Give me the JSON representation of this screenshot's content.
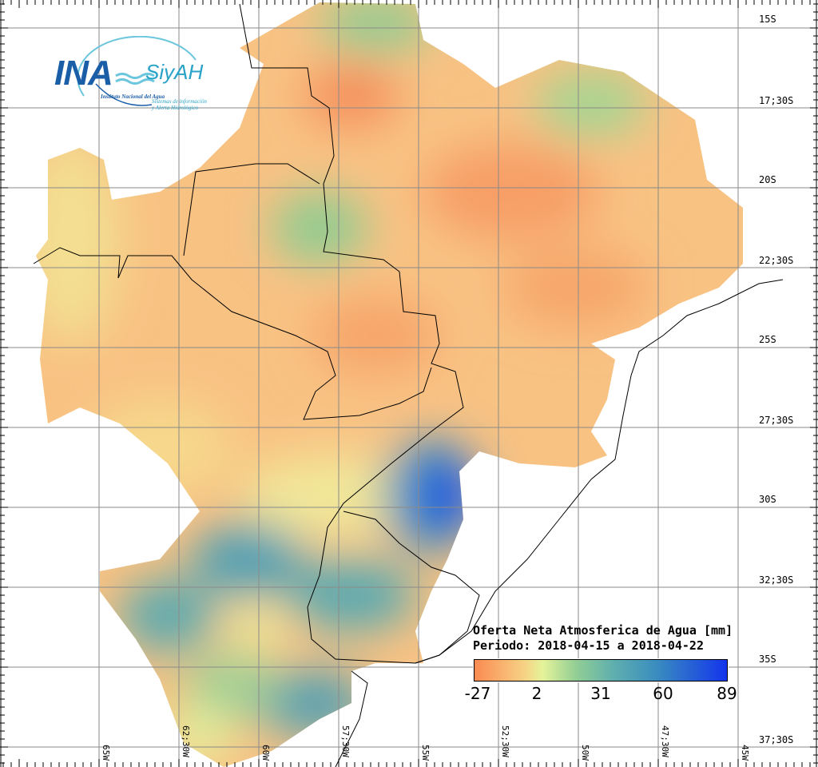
{
  "logo": {
    "main": "INA",
    "secondary": "SiyAH",
    "institute": "Instituto Nacional del Agua",
    "system_line1": "Sistemas de información",
    "system_line2": "y Alerta Hidrológico"
  },
  "legend": {
    "title": "Oferta Neta Atmosferica de Agua [mm]",
    "period": "Periodo: 2018-04-15 a 2018-04-22",
    "ticks": [
      "-27",
      "2",
      "31",
      "60",
      "89"
    ],
    "colors": [
      "#fb8a52",
      "#f6d385",
      "#e5f39a",
      "#93cf94",
      "#5fafae",
      "#3a8dbf",
      "#1334ec"
    ]
  },
  "lat_labels": [
    "15S",
    "17;30S",
    "20S",
    "22;30S",
    "25S",
    "27;30S",
    "30S",
    "32;30S",
    "35S",
    "37;30S"
  ],
  "lon_labels": [
    "65W",
    "62;30W",
    "60W",
    "57;30W",
    "55W",
    "52;30W",
    "50W",
    "47;30W",
    "45W"
  ]
}
